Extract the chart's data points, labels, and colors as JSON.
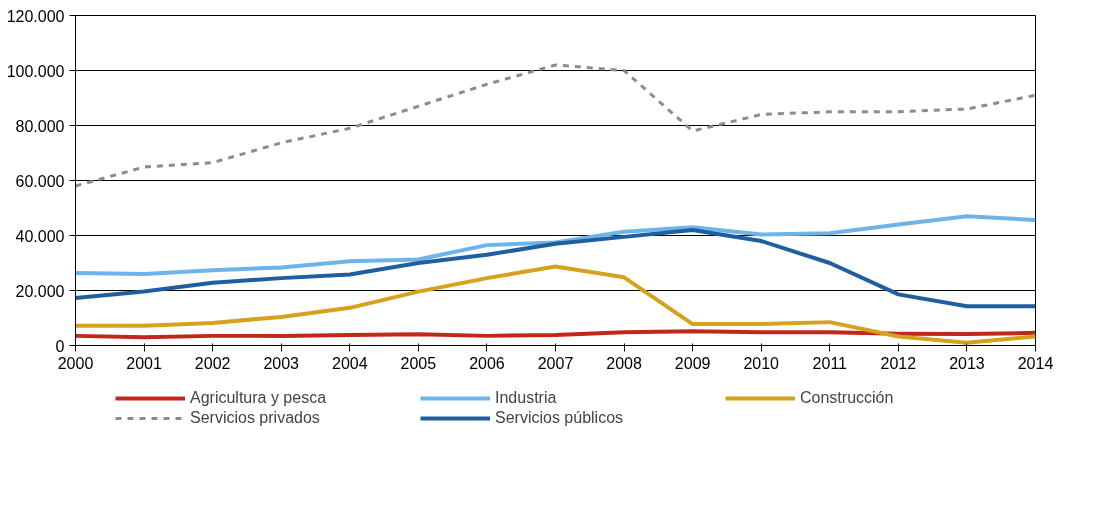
{
  "chart_data": {
    "type": "line",
    "x": [
      2000,
      2001,
      2002,
      2003,
      2004,
      2005,
      2006,
      2007,
      2008,
      2009,
      2010,
      2011,
      2012,
      2013,
      2014
    ],
    "series": [
      {
        "name": "Agricultura y pesca",
        "color": "#c0281c",
        "line_style": "solid",
        "values": [
          3500,
          3000,
          3500,
          3500,
          3800,
          4100,
          3500,
          3800,
          4800,
          5200,
          4800,
          4800,
          4300,
          4200,
          4600
        ]
      },
      {
        "name": "Industria",
        "color": "#6cb4ea",
        "line_style": "solid",
        "values": [
          26400,
          26000,
          27400,
          28400,
          30600,
          31300,
          36500,
          37500,
          41400,
          43000,
          40400,
          40800,
          44000,
          47000,
          45600
        ]
      },
      {
        "name": "Construcción",
        "color": "#d6a21e",
        "line_style": "solid",
        "values": [
          7200,
          7200,
          8200,
          10400,
          13700,
          19600,
          24500,
          28700,
          24800,
          7800,
          7800,
          8500,
          3300,
          1000,
          3300
        ]
      },
      {
        "name": "Servicios privados",
        "color": "#8c8c8c",
        "line_style": "dashed",
        "values": [
          58000,
          64900,
          66500,
          73700,
          79000,
          87000,
          95000,
          102000,
          100000,
          78000,
          84000,
          85000,
          85000,
          86000,
          91000
        ]
      },
      {
        "name": "Servicios públicos",
        "color": "#1f5fa0",
        "line_style": "solid",
        "values": [
          17300,
          19600,
          22800,
          24500,
          25800,
          30000,
          33000,
          37000,
          39500,
          42000,
          38000,
          30000,
          18600,
          14300,
          14300
        ]
      }
    ],
    "xlim": [
      2000,
      2014
    ],
    "xticks": [
      2000,
      2001,
      2002,
      2003,
      2004,
      2005,
      2006,
      2007,
      2008,
      2009,
      2010,
      2011,
      2012,
      2013,
      2014
    ],
    "ylim": [
      0,
      120000
    ],
    "yticks": [
      0,
      {
        "value": 20000,
        "label": "20.000"
      },
      {
        "value": 40000,
        "label": "40.000"
      },
      {
        "value": 60000,
        "label": "60.000"
      },
      {
        "value": 80000,
        "label": "80.000"
      },
      {
        "value": 100000,
        "label": "100.000"
      },
      {
        "value": 120000,
        "label": "120.000"
      }
    ],
    "grid": "y",
    "legend": "bottom",
    "marker": "none"
  }
}
